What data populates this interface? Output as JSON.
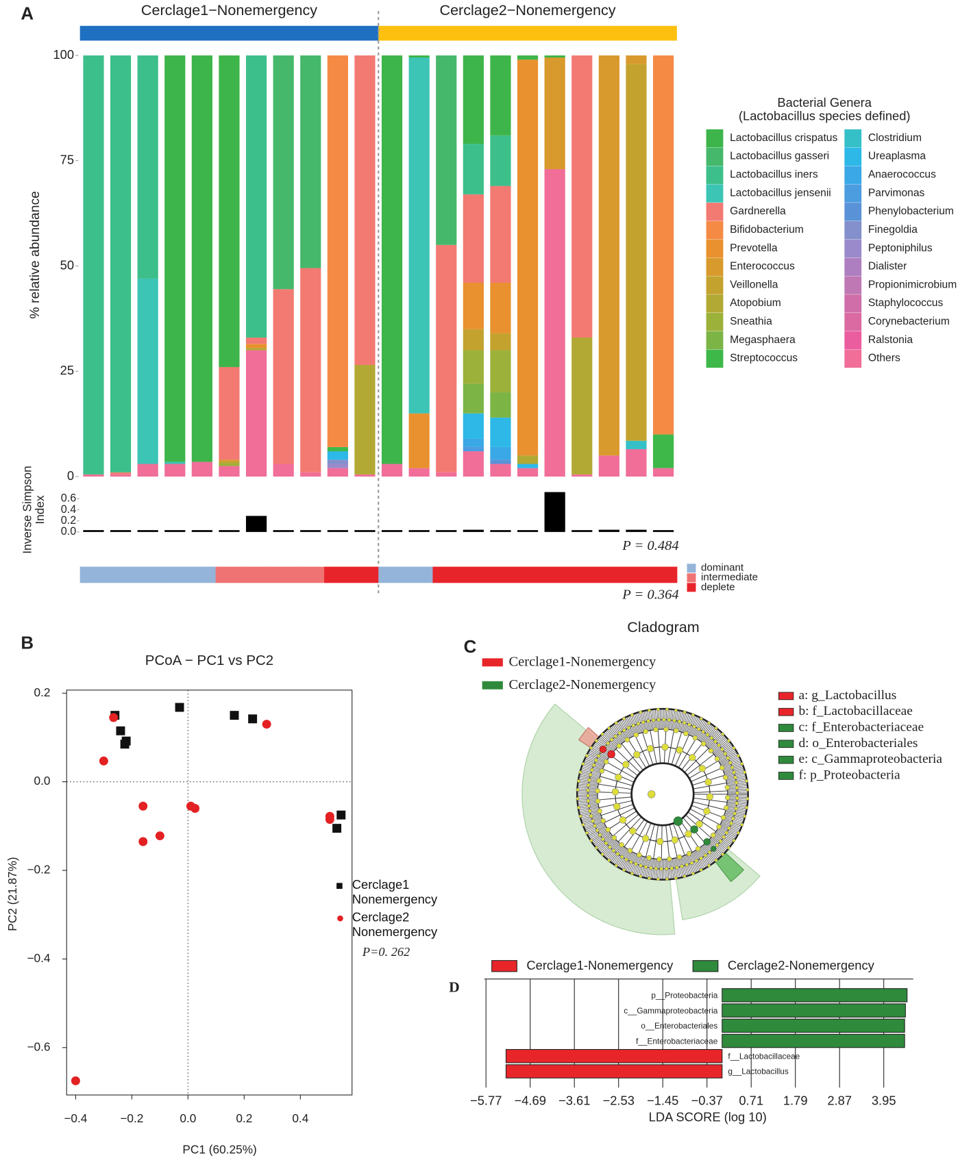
{
  "panel_labels": [
    "A",
    "B",
    "C",
    "D"
  ],
  "chart_data": [
    {
      "type": "stacked_bar",
      "groups": [
        {
          "name": "Cerclage1−Nonemergency",
          "color": "#1f70c1",
          "n": 11
        },
        {
          "name": "Cerclage2−Nonemergency",
          "color": "#fdc010",
          "n": 11
        }
      ],
      "ylabel": "% relative abundance",
      "ylim": [
        0,
        100
      ],
      "yticks": [
        0,
        25,
        50,
        75,
        100
      ],
      "legend_title": [
        "Bacterial Genera",
        "(Lactobacillus species defined)"
      ],
      "series": [
        {
          "name": "Lactobacillus crispatus",
          "color": "#3db54a",
          "values": [
            0,
            0,
            0,
            96.5,
            96.5,
            74,
            0,
            0,
            0,
            0,
            0,
            97,
            0.5,
            0,
            21,
            19,
            1,
            0.5,
            0,
            0,
            0,
            0
          ]
        },
        {
          "name": "Lactobacillus gasseri",
          "color": "#45b86b",
          "values": [
            0,
            0,
            0,
            0,
            0,
            0,
            0,
            55.5,
            50.5,
            0,
            0,
            0,
            0,
            45,
            0,
            0,
            0,
            0,
            0,
            0,
            0,
            0
          ]
        },
        {
          "name": "Lactobacillus iners",
          "color": "#3dbf8b",
          "values": [
            99.5,
            99,
            53,
            0,
            0,
            0,
            67,
            0,
            0,
            0,
            0,
            0,
            0,
            0,
            12,
            12,
            0,
            0,
            0,
            0,
            0,
            0
          ]
        },
        {
          "name": "Lactobacillus jensenii",
          "color": "#3cc4b5",
          "values": [
            0,
            0,
            44,
            0.5,
            0,
            0,
            0,
            0,
            0,
            0,
            0,
            0,
            84.5,
            0,
            0,
            0,
            0,
            0,
            0,
            0,
            0,
            0
          ]
        },
        {
          "name": "Gardnerella",
          "color": "#f27a72",
          "values": [
            0,
            0.5,
            0,
            0,
            0,
            22,
            1.5,
            41.5,
            48.5,
            0,
            73.5,
            0,
            0,
            54,
            21,
            23,
            0,
            0,
            67,
            0,
            0,
            0
          ]
        },
        {
          "name": "Bifidobacterium",
          "color": "#f58a45",
          "values": [
            0,
            0,
            0,
            0,
            0,
            0,
            0,
            0,
            0,
            93,
            0,
            0,
            0,
            0,
            0,
            0,
            0,
            0,
            0,
            0,
            0,
            90
          ]
        },
        {
          "name": "Prevotella",
          "color": "#e8912e",
          "values": [
            0,
            0,
            0,
            0,
            0,
            0,
            1,
            0,
            0,
            0,
            0,
            0,
            13,
            0,
            11,
            12,
            94,
            0,
            0,
            0,
            0,
            0
          ]
        },
        {
          "name": "Enterococcus",
          "color": "#d89a2c",
          "values": [
            0,
            0,
            0,
            0,
            0,
            0.5,
            0,
            0,
            0,
            0,
            0,
            0,
            0,
            0,
            0,
            0,
            0,
            26.5,
            0,
            95,
            2,
            0
          ]
        },
        {
          "name": "Veillonella",
          "color": "#c4a22e",
          "values": [
            0,
            0,
            0,
            0,
            0,
            0,
            0,
            0,
            0,
            0,
            0,
            0,
            0,
            0,
            5,
            4,
            0,
            0,
            0,
            0,
            89.5,
            0
          ]
        },
        {
          "name": "Atopobium",
          "color": "#b1a934",
          "values": [
            0,
            0,
            0,
            0,
            0,
            0.5,
            0.5,
            0,
            0,
            0,
            26,
            0,
            0,
            0,
            0,
            0,
            2,
            0,
            32.5,
            0,
            0,
            0
          ]
        },
        {
          "name": "Sneathia",
          "color": "#9cb13a",
          "values": [
            0,
            0,
            0,
            0,
            0,
            0.5,
            0,
            0,
            0,
            0,
            0,
            0,
            0,
            0,
            8,
            10,
            0,
            0,
            0,
            0,
            0,
            0
          ]
        },
        {
          "name": "Megasphaera",
          "color": "#7cb446",
          "values": [
            0,
            0,
            0,
            0,
            0,
            0,
            0,
            0,
            0,
            0,
            0,
            0,
            0,
            0,
            7,
            6,
            0,
            0,
            0,
            0,
            0,
            0
          ]
        },
        {
          "name": "Streptococcus",
          "color": "#3db849",
          "values": [
            0,
            0,
            0,
            0,
            0,
            0,
            0,
            0,
            0,
            1,
            0,
            0,
            0,
            0,
            0,
            0,
            0,
            0,
            0,
            0,
            0,
            8
          ]
        },
        {
          "name": "Clostridium",
          "color": "#35c0c8",
          "values": [
            0,
            0,
            0,
            0,
            0,
            0,
            0,
            0,
            0,
            0,
            0,
            0,
            0,
            0,
            0,
            0,
            0,
            0,
            0,
            0,
            2,
            0
          ]
        },
        {
          "name": "Ureaplasma",
          "color": "#2db8e8",
          "values": [
            0,
            0,
            0,
            0,
            0,
            0,
            0,
            0,
            0,
            2,
            0,
            0,
            0,
            0,
            6,
            7,
            1,
            0,
            0,
            0,
            0,
            0
          ]
        },
        {
          "name": "Anaerococcus",
          "color": "#3aa8e6",
          "values": [
            0,
            0,
            0,
            0,
            0,
            0,
            0,
            0,
            0,
            0,
            0,
            0,
            0,
            0,
            2,
            3,
            0,
            0,
            0,
            0,
            0,
            0
          ]
        },
        {
          "name": "Parvimonas",
          "color": "#4c9ce0",
          "values": [
            0,
            0,
            0,
            0,
            0,
            0,
            0,
            0,
            0,
            0,
            0,
            0,
            0,
            0,
            1,
            0,
            0,
            0,
            0,
            0,
            0,
            0
          ]
        },
        {
          "name": "Phenylobacterium",
          "color": "#5a92d8",
          "values": [
            0,
            0,
            0,
            0,
            0,
            0,
            0,
            0,
            0,
            0,
            0,
            0,
            0,
            0,
            0,
            1,
            0,
            0,
            0,
            0,
            0,
            0
          ]
        },
        {
          "name": "Finegoldia",
          "color": "#8390cc",
          "values": [
            0,
            0,
            0,
            0,
            0,
            0,
            0,
            0,
            0,
            1,
            0,
            0,
            0,
            0,
            0,
            0,
            0,
            0,
            0,
            0,
            0,
            0
          ]
        },
        {
          "name": "Peptoniphilus",
          "color": "#9a8acb",
          "values": [
            0,
            0,
            0,
            0,
            0,
            0,
            0,
            0,
            0,
            1,
            0,
            0,
            0,
            0,
            0,
            0,
            0,
            0,
            0,
            0,
            0,
            0
          ]
        },
        {
          "name": "Dialister",
          "color": "#ad7fc0",
          "values": [
            0,
            0,
            0,
            0,
            0,
            0,
            0,
            0,
            0,
            0,
            0,
            0,
            0,
            0,
            0,
            0,
            0,
            0,
            0,
            0,
            0,
            0
          ]
        },
        {
          "name": "Propionimicrobium",
          "color": "#bf78b4",
          "values": [
            0,
            0,
            0,
            0,
            0,
            0,
            0,
            0,
            0,
            0,
            0,
            0,
            0,
            0,
            0,
            0,
            0,
            0,
            0,
            0,
            0,
            0
          ]
        },
        {
          "name": "Staphylococcus",
          "color": "#cf6ea8",
          "values": [
            0,
            0,
            0,
            0,
            0,
            0,
            0,
            0,
            0,
            0,
            0,
            0,
            0,
            0,
            0,
            0,
            0,
            0,
            0,
            0,
            0,
            0
          ]
        },
        {
          "name": "Corynebacterium",
          "color": "#dc6aa2",
          "values": [
            0,
            0,
            0,
            0,
            0,
            0,
            0,
            0,
            0,
            0,
            0,
            0,
            0,
            0,
            0,
            0,
            0,
            0,
            0,
            0,
            0,
            0
          ]
        },
        {
          "name": "Ralstonia",
          "color": "#ea5ea0",
          "values": [
            0,
            0,
            0,
            0,
            0,
            0,
            0,
            0,
            0,
            0,
            0,
            0,
            0,
            0,
            0,
            0,
            0,
            0,
            0,
            0,
            0,
            0
          ]
        },
        {
          "name": "Others",
          "color": "#f06e98",
          "values": [
            0.5,
            0.5,
            3,
            3,
            3.5,
            2.5,
            30,
            3,
            1,
            2,
            0.5,
            3,
            2,
            1,
            6,
            3,
            2,
            73,
            0.5,
            5,
            6.5,
            2
          ]
        }
      ]
    },
    {
      "type": "bar",
      "ylabel": [
        "Inverse Simpson",
        "Index"
      ],
      "color": "#000000",
      "values": [
        0.01,
        0.01,
        0.03,
        0.03,
        0.03,
        0.02,
        0.29,
        0.03,
        0.01,
        0.01,
        0.01,
        0.03,
        0.02,
        0.01,
        0.04,
        0.03,
        0.01,
        0.72,
        0.01,
        0.04,
        0.04,
        0.01
      ],
      "ylim": [
        0,
        0.75
      ],
      "yticks": [
        {
          "value": 0,
          "label": "0.0"
        },
        0.2,
        0.4,
        0.6
      ],
      "annotation": "P = 0.484"
    },
    {
      "type": "strip",
      "legend": [
        {
          "name": "dominant",
          "color": "#94b4d9"
        },
        {
          "name": "intermediate",
          "color": "#f07373"
        },
        {
          "name": "deplete",
          "color": "#e8242b"
        }
      ],
      "values": [
        "dominant",
        "dominant",
        "dominant",
        "dominant",
        "dominant",
        "intermediate",
        "intermediate",
        "intermediate",
        "intermediate",
        "deplete",
        "deplete",
        "dominant",
        "dominant",
        "deplete",
        "deplete",
        "deplete",
        "deplete",
        "deplete",
        "deplete",
        "deplete",
        "deplete",
        "deplete"
      ],
      "annotation": "P = 0.364"
    },
    {
      "type": "scatter",
      "title": "PCoA − PC1 vs PC2",
      "xlabel": "PC1 (60.25%)",
      "ylabel": "PC2 (21.87%)",
      "xlim": [
        -0.432,
        0.584
      ],
      "ylim": [
        -0.707,
        0.207
      ],
      "xticks": [
        {
          "value": -0.4,
          "label": "−0.4"
        },
        {
          "value": -0.2,
          "label": "−0.2"
        },
        {
          "value": 0,
          "label": "0.0"
        },
        0.2,
        0.4
      ],
      "yticks": [
        0.2,
        {
          "value": 0,
          "label": "0.0"
        },
        {
          "value": -0.2,
          "label": "−0.2"
        },
        {
          "value": -0.4,
          "label": "−0.4"
        },
        {
          "value": -0.6,
          "label": "−0.6"
        }
      ],
      "zero_lines": true,
      "series": [
        {
          "name": "Cerclage1\nNonemergency",
          "color": "#111111",
          "marker": "square",
          "x": [
            -0.26,
            -0.24,
            -0.225,
            -0.22,
            -0.03,
            0.165,
            0.23,
            0.545,
            0.53
          ],
          "y": [
            0.15,
            0.115,
            0.085,
            0.092,
            0.168,
            0.15,
            0.142,
            -0.075,
            -0.105
          ]
        },
        {
          "name": "Cerclage2\nNonemergency",
          "color": "#e32022",
          "marker": "circle",
          "x": [
            -0.265,
            -0.3,
            -0.16,
            -0.16,
            -0.1,
            0.01,
            0.025,
            0.28,
            0.505,
            0.505,
            -0.4
          ],
          "y": [
            0.145,
            0.047,
            -0.055,
            -0.135,
            -0.122,
            -0.055,
            -0.06,
            0.13,
            -0.078,
            -0.085,
            -0.675
          ]
        }
      ],
      "annotation": "P=0. 262"
    },
    {
      "type": "cladogram",
      "title": "Cladogram",
      "groups": [
        {
          "name": "Cerclage1-Nonemergency",
          "color": "#e8262a"
        },
        {
          "name": "Cerclage2-Nonemergency",
          "color": "#2f8a3c"
        }
      ],
      "clades": [
        {
          "label": "a: g_Lactobacillus",
          "color": "#e8262a"
        },
        {
          "label": "b: f_Lactobacillaceae",
          "color": "#e8262a"
        },
        {
          "label": "c: f_Enterobacteriaceae",
          "color": "#2f8a3c"
        },
        {
          "label": "d: o_Enterobacteriales",
          "color": "#2f8a3c"
        },
        {
          "label": "e: c_Gammaproteobacteria",
          "color": "#2f8a3c"
        },
        {
          "label": "f: p_Proteobacteria",
          "color": "#2f8a3c"
        }
      ]
    },
    {
      "type": "hbar",
      "groups": [
        {
          "name": "Cerclage1-Nonemergency",
          "color": "#e8262a"
        },
        {
          "name": "Cerclage2-Nonemergency",
          "color": "#2f8a3c"
        }
      ],
      "categories": [
        "p__Proteobacteria",
        "c__Gammaproteobacteria",
        "o__Enterobacteriales",
        "f__Enterobacteriaceae",
        "f__Lactobacillaceae",
        "g__Lactobacillus"
      ],
      "values": [
        4.52,
        4.48,
        4.46,
        4.46,
        -5.28,
        -5.28
      ],
      "bar_group": [
        1,
        1,
        1,
        1,
        0,
        0
      ],
      "xlabel": "LDA SCORE (log 10)",
      "xlim": [
        -6.08,
        4.67
      ],
      "xticks": [
        {
          "value": -5.77,
          "label": "−5.77"
        },
        {
          "value": -4.69,
          "label": "−4.69"
        },
        {
          "value": -3.61,
          "label": "−3.61"
        },
        {
          "value": -2.53,
          "label": "−2.53"
        },
        {
          "value": -1.45,
          "label": "−1.45"
        },
        {
          "value": -0.37,
          "label": "−0.37"
        },
        0.71,
        1.79,
        2.87,
        3.95
      ]
    }
  ]
}
